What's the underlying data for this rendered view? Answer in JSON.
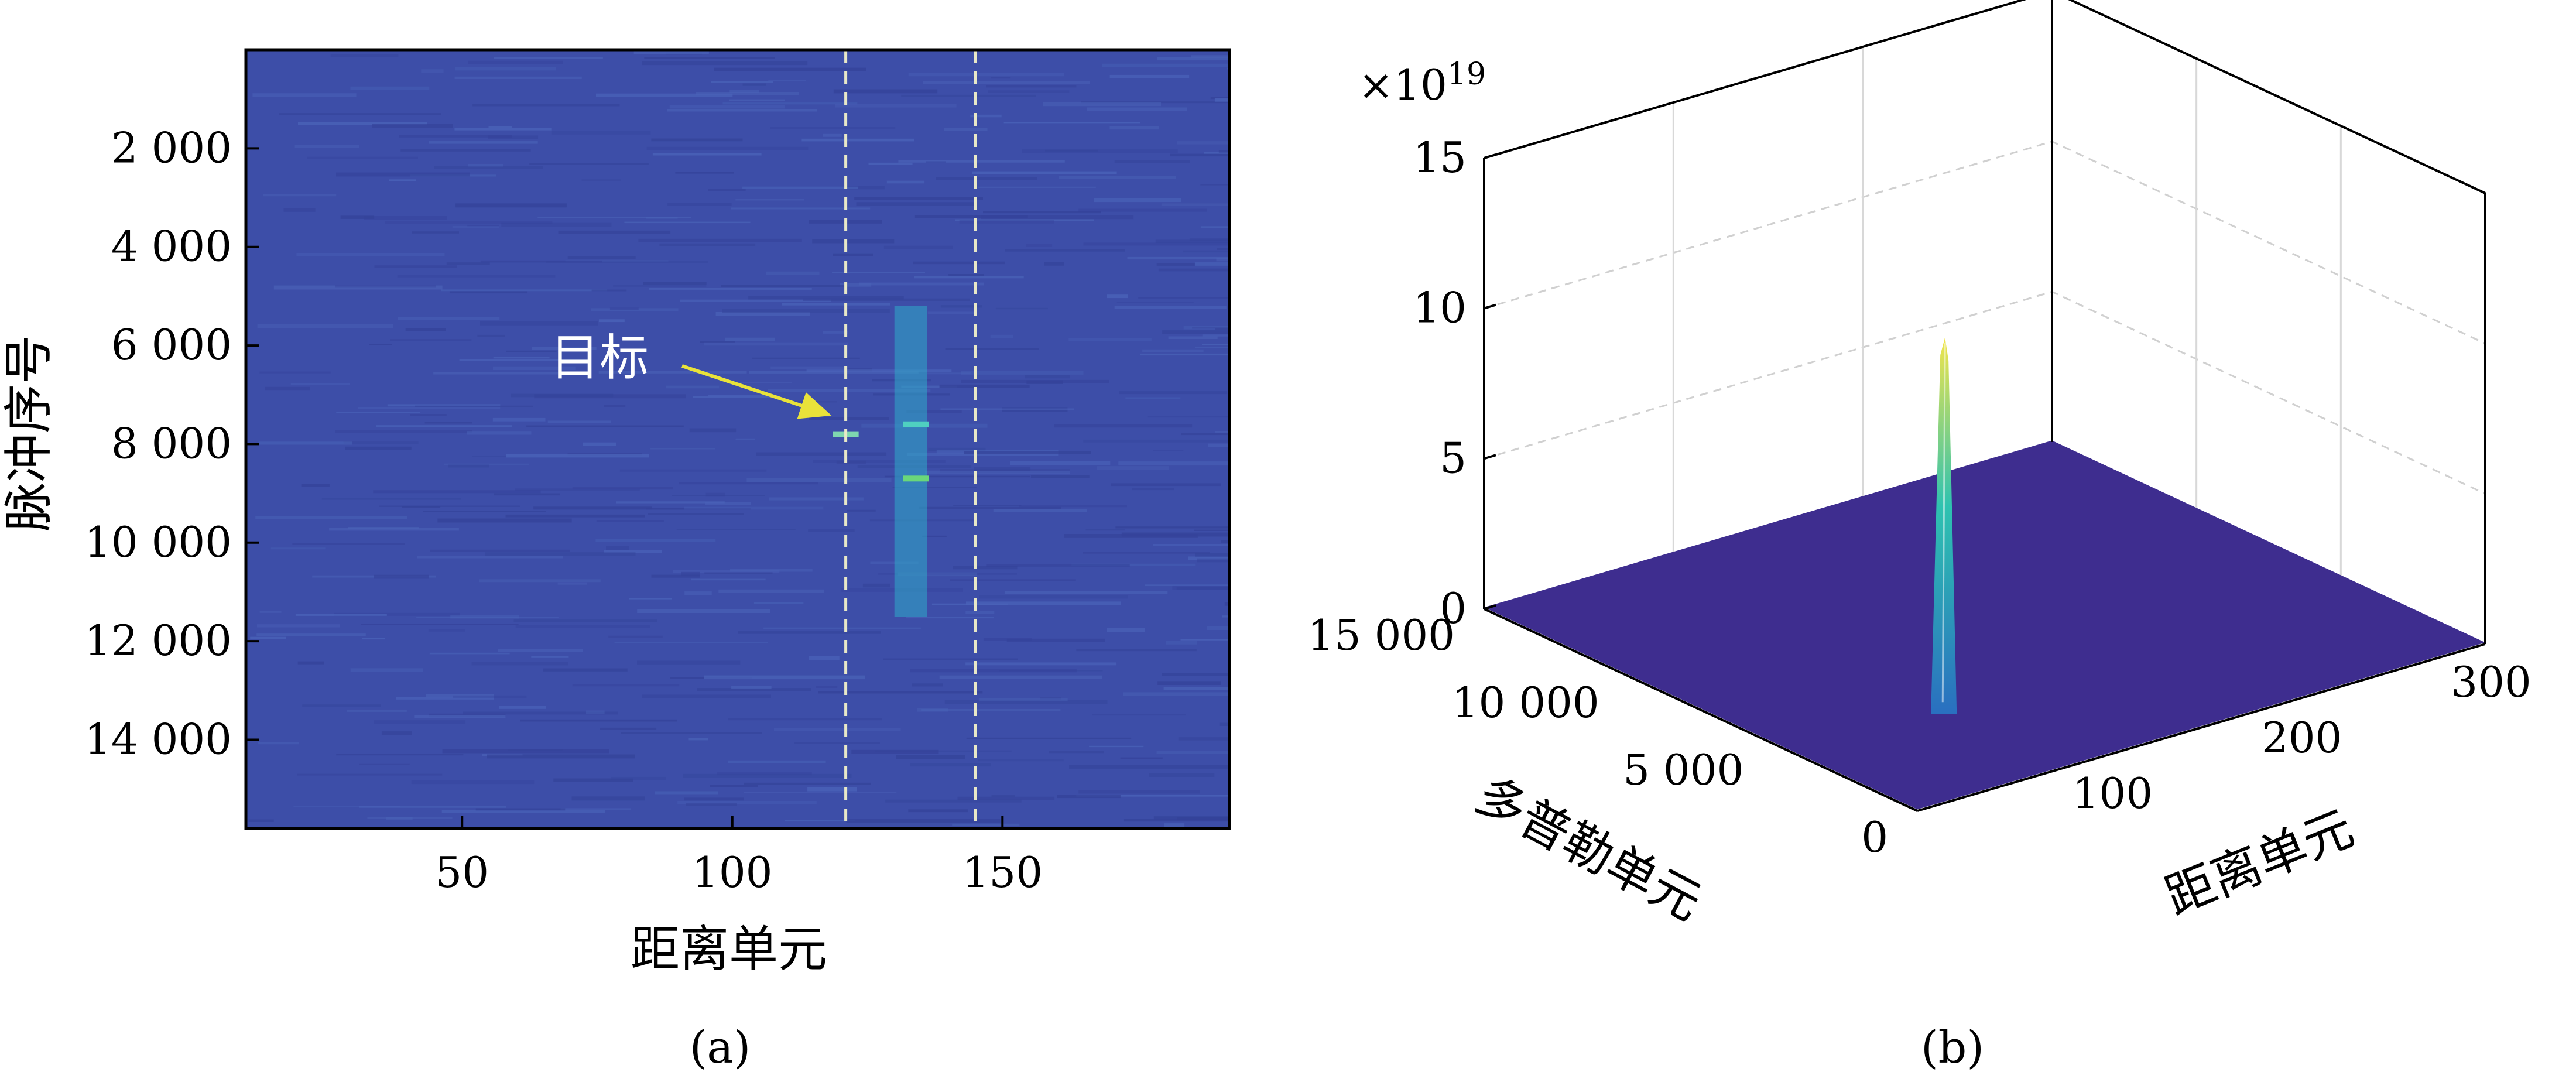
{
  "chart_data": [
    {
      "panel": "(a)",
      "type": "heatmap",
      "xlabel": "距离单元",
      "ylabel": "脉冲序号",
      "xlim": [
        10,
        192
      ],
      "ylim": [
        0,
        15800
      ],
      "y_reversed": true,
      "x_ticks": [
        50,
        100,
        150
      ],
      "x_tick_labels": [
        "50",
        "100",
        "150"
      ],
      "y_ticks": [
        2000,
        4000,
        6000,
        8000,
        10000,
        12000,
        14000
      ],
      "y_tick_labels": [
        "2 000",
        "4 000",
        "6 000",
        "8 000",
        "10 000",
        "12 000",
        "14 000"
      ],
      "colormap": "parula",
      "background_color": "#3d4ea8",
      "target_window": {
        "x_start": 121,
        "x_end": 145,
        "line_style": "dashed",
        "line_color": "#e8e8c8"
      },
      "target_stripe": {
        "x_center": 133,
        "x_halfwidth": 3,
        "y_start": 5200,
        "y_end": 11500,
        "color": "#2fa9c8"
      },
      "bright_pixels": [
        {
          "x": 134,
          "y": 7600,
          "color": "#4fd0c0"
        },
        {
          "x": 134,
          "y": 8700,
          "color": "#6ad77a"
        },
        {
          "x": 121,
          "y": 7800,
          "color": "#7fd6b0"
        }
      ],
      "annotation": {
        "text": "目标",
        "arrow_to": {
          "x": 121,
          "y": 7400
        },
        "arrow_color": "#e9e23a"
      }
    },
    {
      "panel": "(b)",
      "type": "surface3d",
      "xlabel": "距离单元",
      "ylabel": "多普勒单元",
      "zlabel": "",
      "z_exponent_label": "×10",
      "z_exponent_power": "19",
      "xlim": [
        0,
        300
      ],
      "ylim": [
        0,
        15000
      ],
      "zlim": [
        0,
        15
      ],
      "x_ticks": [
        100,
        200,
        300
      ],
      "x_tick_labels": [
        "100",
        "200",
        "300"
      ],
      "y_ticks": [
        0,
        5000,
        10000,
        15000
      ],
      "y_tick_labels": [
        "0",
        "5 000",
        "10 000",
        "15 000"
      ],
      "z_ticks": [
        0,
        5,
        10,
        15
      ],
      "z_tick_labels": [
        "0",
        "5",
        "10",
        "15"
      ],
      "floor_color": "#3e2d8f",
      "peak": {
        "x": 133,
        "y": 7800,
        "z": 9.8,
        "color_top": "#f2e54a",
        "color_mid": "#2ec2b0",
        "color_base": "#2a6fc0"
      }
    }
  ],
  "captions": {
    "a": "(a)",
    "b": "(b)"
  }
}
